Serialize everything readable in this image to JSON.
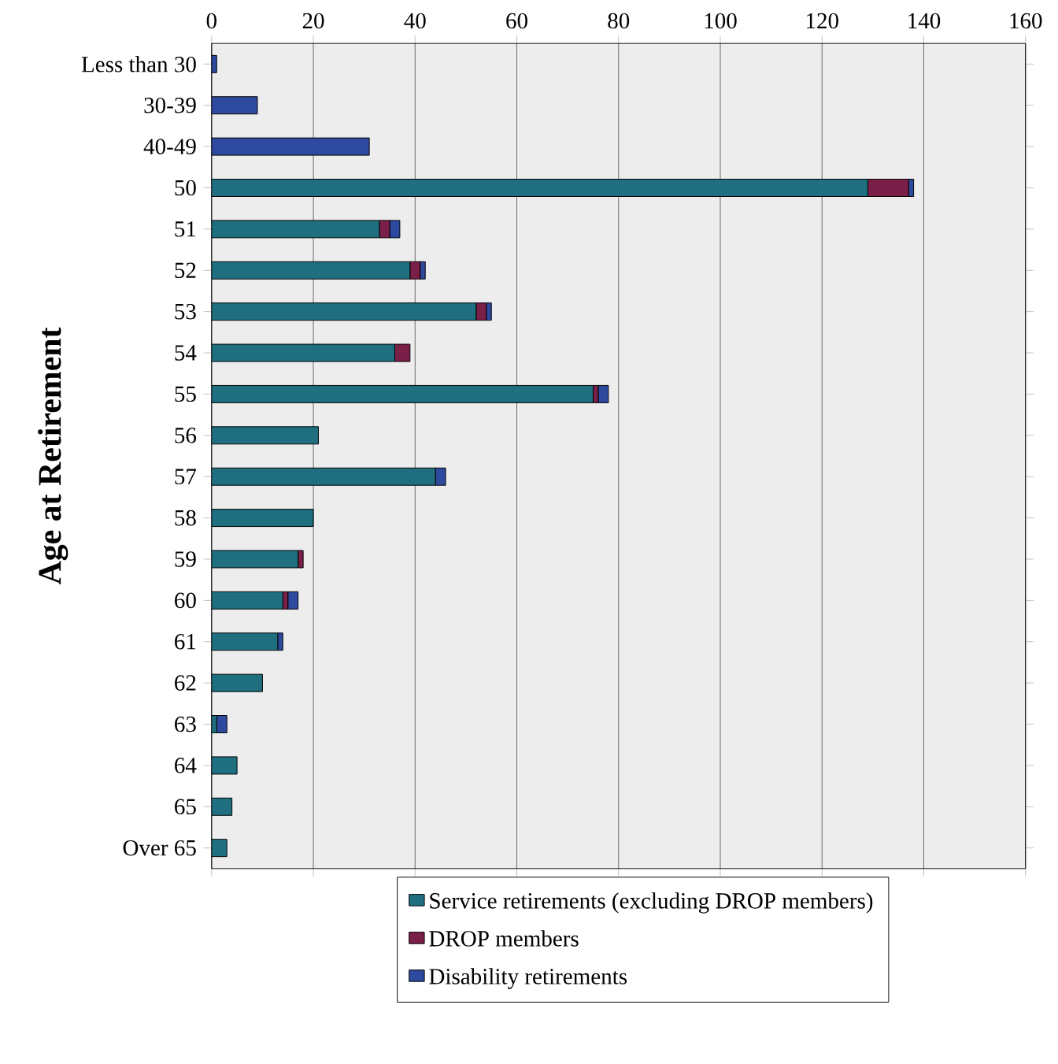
{
  "chart_data": {
    "type": "bar",
    "orientation": "horizontal",
    "stacked": true,
    "ylabel": "Age at Retirement",
    "categories": [
      "Less than 30",
      "30-39",
      "40-49",
      "50",
      "51",
      "52",
      "53",
      "54",
      "55",
      "56",
      "57",
      "58",
      "59",
      "60",
      "61",
      "62",
      "63",
      "64",
      "65",
      "Over 65"
    ],
    "series": [
      {
        "name": "Service retirements (excluding DROP members)",
        "color": "#1f6f80",
        "values": [
          0,
          0,
          0,
          129,
          33,
          39,
          52,
          36,
          75,
          21,
          44,
          20,
          17,
          14,
          13,
          10,
          1,
          5,
          4,
          3
        ]
      },
      {
        "name": "DROP members",
        "color": "#7a1f48",
        "values": [
          0,
          0,
          0,
          8,
          2,
          2,
          2,
          3,
          1,
          0,
          0,
          0,
          1,
          1,
          0,
          0,
          0,
          0,
          0,
          0
        ]
      },
      {
        "name": "Disability retirements",
        "color": "#2e4a9e",
        "values": [
          1,
          9,
          31,
          1,
          2,
          1,
          1,
          0,
          2,
          0,
          2,
          0,
          0,
          2,
          1,
          0,
          2,
          0,
          0,
          0
        ]
      }
    ],
    "xlim": [
      0,
      160
    ],
    "xticks": [
      0,
      20,
      40,
      60,
      80,
      100,
      120,
      140,
      160
    ],
    "grid": "x",
    "legend": "bottom"
  }
}
